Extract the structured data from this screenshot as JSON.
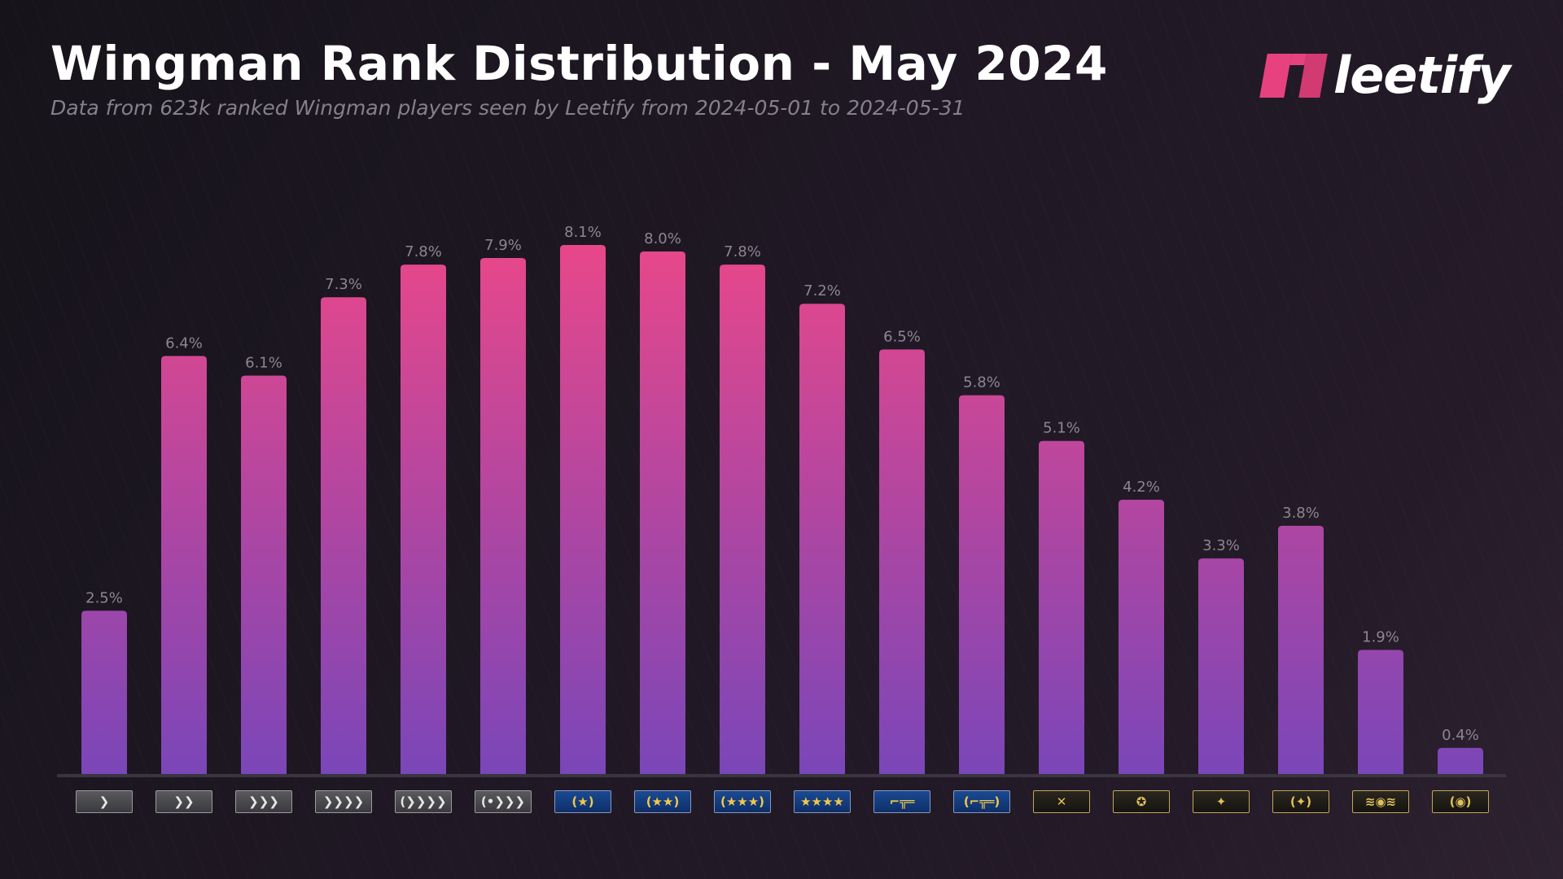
{
  "header": {
    "title": "Wingman Rank Distribution - May 2024",
    "subtitle": "Data from 623k ranked Wingman players seen by Leetify from 2024-05-01 to 2024-05-31",
    "logo_text": "leetify"
  },
  "colors": {
    "bar_top": "#e8478a",
    "bar_bottom": "#7a46b8",
    "accent": "#e8417f",
    "axis": "#3a3540"
  },
  "chart_data": {
    "type": "bar",
    "title": "Wingman Rank Distribution - May 2024",
    "categories": [
      "Silver I",
      "Silver II",
      "Silver III",
      "Silver IV",
      "Silver Elite",
      "Silver Elite Master",
      "Gold Nova I",
      "Gold Nova II",
      "Gold Nova III",
      "Gold Nova Master",
      "Master Guardian I",
      "Master Guardian II",
      "Master Guardian Elite",
      "Distinguished Master Guardian",
      "Legendary Eagle",
      "Legendary Eagle Master",
      "Supreme Master First Class",
      "The Global Elite"
    ],
    "category_icons": [
      "silver-1-rank-icon",
      "silver-2-rank-icon",
      "silver-3-rank-icon",
      "silver-4-rank-icon",
      "silver-elite-rank-icon",
      "silver-elite-master-rank-icon",
      "gold-nova-1-rank-icon",
      "gold-nova-2-rank-icon",
      "gold-nova-3-rank-icon",
      "gold-nova-master-rank-icon",
      "master-guardian-1-rank-icon",
      "master-guardian-2-rank-icon",
      "master-guardian-elite-rank-icon",
      "distinguished-master-guardian-rank-icon",
      "legendary-eagle-rank-icon",
      "legendary-eagle-master-rank-icon",
      "supreme-rank-icon",
      "global-elite-rank-icon"
    ],
    "values": [
      2.5,
      6.4,
      6.1,
      7.3,
      7.8,
      7.9,
      8.1,
      8.0,
      7.8,
      7.2,
      6.5,
      5.8,
      5.1,
      4.2,
      3.3,
      3.8,
      1.9,
      0.4
    ],
    "data_labels": [
      "2.5%",
      "6.4%",
      "6.1%",
      "7.3%",
      "7.8%",
      "7.9%",
      "8.1%",
      "8.0%",
      "7.8%",
      "7.2%",
      "6.5%",
      "5.8%",
      "5.1%",
      "4.2%",
      "3.3%",
      "3.8%",
      "1.9%",
      "0.4%"
    ],
    "unit": "%",
    "ylim": [
      0,
      8.1
    ],
    "grid": false,
    "legend": "none"
  }
}
